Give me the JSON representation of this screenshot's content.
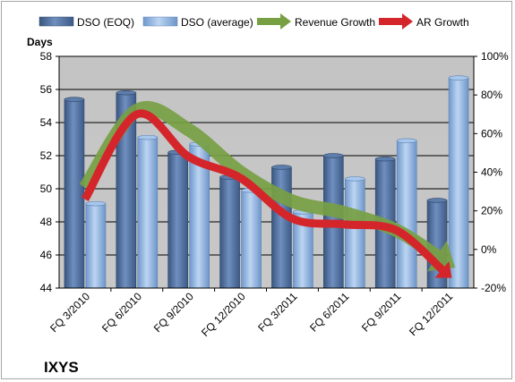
{
  "chart_data": {
    "type": "bar",
    "company": "IXYS",
    "y_left_title": "Days",
    "categories": [
      "FQ 3/2010",
      "FQ 6/2010",
      "FQ 9/2010",
      "FQ 12/2010",
      "FQ 3/2011",
      "FQ 6/2011",
      "FQ 9/2011",
      "FQ 12/2011"
    ],
    "left_axis": {
      "min": 44,
      "max": 58,
      "step": 2,
      "ticks": [
        "44",
        "46",
        "48",
        "50",
        "52",
        "54",
        "56",
        "58"
      ]
    },
    "right_axis": {
      "min": -20,
      "max": 100,
      "step": 20,
      "ticks": [
        "-20%",
        "0%",
        "20%",
        "40%",
        "60%",
        "80%",
        "100%"
      ]
    },
    "series": [
      {
        "name": "DSO (EOQ)",
        "kind": "bar",
        "color": "#4f6d99",
        "values": [
          55.4,
          55.8,
          52.2,
          50.7,
          51.3,
          52.0,
          51.8,
          49.3
        ]
      },
      {
        "name": "DSO (average)",
        "kind": "bar",
        "color": "#8fb4e0",
        "values": [
          49.1,
          53.1,
          52.7,
          49.9,
          48.6,
          50.6,
          52.9,
          56.7
        ]
      },
      {
        "name": "Revenue Growth",
        "kind": "line",
        "axis": "right",
        "color": "#77a043",
        "values": [
          32,
          72,
          62,
          40,
          25,
          19,
          10,
          -7
        ]
      },
      {
        "name": "AR Growth",
        "kind": "line",
        "axis": "right",
        "color": "#d4262a",
        "values": [
          26,
          70,
          48,
          37,
          16,
          13,
          10,
          -13
        ]
      }
    ],
    "grid": true,
    "legend_position": "top"
  }
}
